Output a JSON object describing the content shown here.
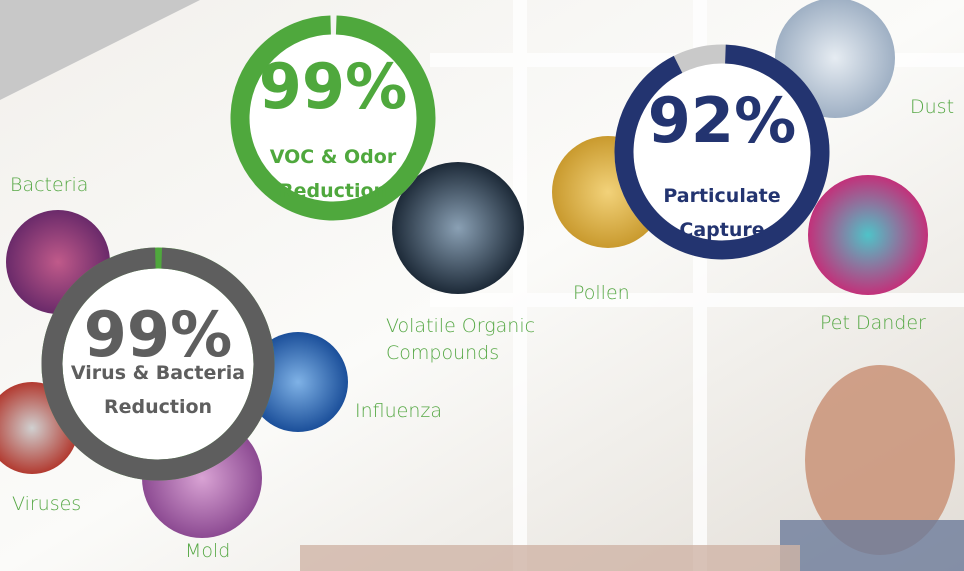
{
  "gauges": [
    {
      "value": 99,
      "value_label": "99%",
      "lines": [
        "VOC & Odor",
        "Reduction"
      ],
      "color": "#4fa83d",
      "track": "#f4f4f2"
    },
    {
      "value": 99,
      "value_label": "99%",
      "lines": [
        "Virus & Bacteria",
        "Reduction"
      ],
      "color": "#5e5e5e",
      "track": "#4fa83d"
    },
    {
      "value": 92,
      "value_label": "92%",
      "lines": [
        "Particulate",
        "Capture"
      ],
      "color": "#233470",
      "track": "#c9c9c9"
    }
  ],
  "contaminants": [
    "Bacteria",
    "Volatile Organic",
    "Compounds",
    "Pollen",
    "Dust",
    "Pet Dander",
    "Influenza",
    "Viruses",
    "Mold"
  ]
}
